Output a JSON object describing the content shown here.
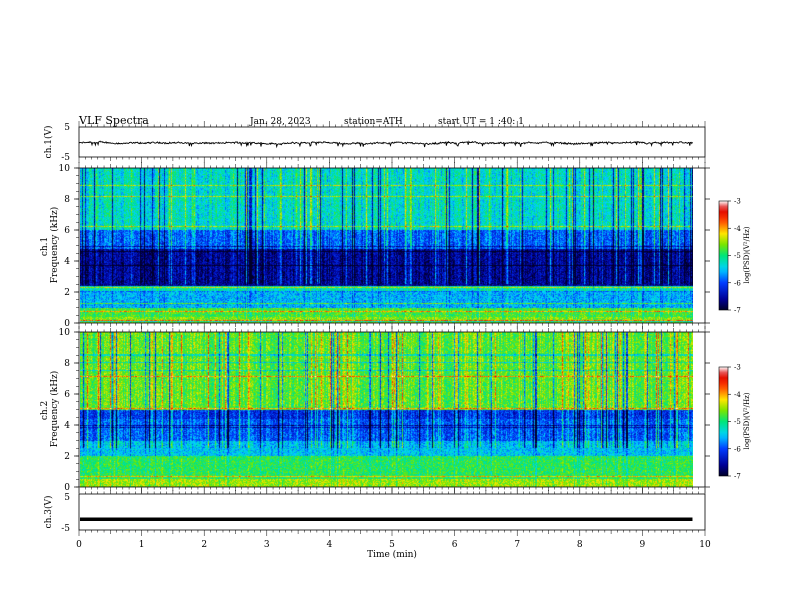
{
  "header": {
    "title": "VLF  Spectra",
    "date": "Jan. 28, 2023",
    "station": "station=ATH",
    "start_ut": "start  UT  =   1 :40: 1"
  },
  "chart_data": [
    {
      "type": "line",
      "name": "ch1-waveform",
      "ylabel": "ch.1(V)",
      "ylim": [
        -5,
        5
      ],
      "yticks": [
        "5",
        "-5"
      ],
      "xlim": [
        0,
        10
      ],
      "note_values": "noisy waveform centred near -0.3 V with amplitude about 0.4 V, ending at 9.8 min"
    },
    {
      "type": "heatmap",
      "name": "ch1-spectrogram",
      "ylabel": "ch.1\nFrequency  (kHz)",
      "ylabel_lines": [
        "ch.1",
        "Frequency  (kHz)"
      ],
      "ylim": [
        0,
        10
      ],
      "yticks": [
        "0",
        "2",
        "4",
        "6",
        "8",
        "10"
      ],
      "xlim": [
        0,
        10
      ],
      "data_end_min": 9.8,
      "colorbar": {
        "label": "log(PSD)(V²/Hz)",
        "range": [
          -7,
          -3
        ],
        "ticks": [
          "-3",
          "-4",
          "-5",
          "-6",
          "-7"
        ]
      },
      "band_levels": [
        {
          "f": [
            0,
            0.4
          ],
          "v": -4.6
        },
        {
          "f": [
            0.4,
            1.0
          ],
          "v": -4.8
        },
        {
          "f": [
            1.0,
            2.0
          ],
          "v": -5.6
        },
        {
          "f": [
            2.0,
            2.4
          ],
          "v": -5.2
        },
        {
          "f": [
            2.4,
            4.8
          ],
          "v": -6.6
        },
        {
          "f": [
            4.8,
            6.0
          ],
          "v": -5.9
        },
        {
          "f": [
            6.0,
            10.0
          ],
          "v": -5.3
        }
      ]
    },
    {
      "type": "heatmap",
      "name": "ch2-spectrogram",
      "ylabel": "ch.2\nFrequency  (kHz)",
      "ylabel_lines": [
        "ch.2",
        "Frequency  (kHz)"
      ],
      "ylim": [
        0,
        10
      ],
      "yticks": [
        "0",
        "2",
        "4",
        "6",
        "8",
        "10"
      ],
      "xlim": [
        0,
        10
      ],
      "data_end_min": 9.8,
      "colorbar": {
        "label": "log(PSD)(V²/Hz)",
        "range": [
          -7,
          -3
        ],
        "ticks": [
          "-3",
          "-4",
          "-5",
          "-6",
          "-7"
        ]
      },
      "band_levels": [
        {
          "f": [
            0,
            0.5
          ],
          "v": -4.5
        },
        {
          "f": [
            0.5,
            2.0
          ],
          "v": -4.9
        },
        {
          "f": [
            2.0,
            3.0
          ],
          "v": -5.5
        },
        {
          "f": [
            3.0,
            4.4
          ],
          "v": -5.9
        },
        {
          "f": [
            4.4,
            5.0
          ],
          "v": -6.1
        },
        {
          "f": [
            5.0,
            10.0
          ],
          "v": -4.7
        }
      ]
    },
    {
      "type": "line",
      "name": "ch3-waveform",
      "ylabel": "ch.3(V)",
      "ylim": [
        -5,
        5
      ],
      "yticks": [
        "5",
        "-5"
      ],
      "xlim": [
        0,
        10
      ],
      "xlabel": "Time  (min)",
      "xticks": [
        "0",
        "1",
        "2",
        "3",
        "4",
        "5",
        "6",
        "7",
        "8",
        "9",
        "10"
      ],
      "constant_value": -2.0,
      "data_end_min": 9.8
    }
  ]
}
